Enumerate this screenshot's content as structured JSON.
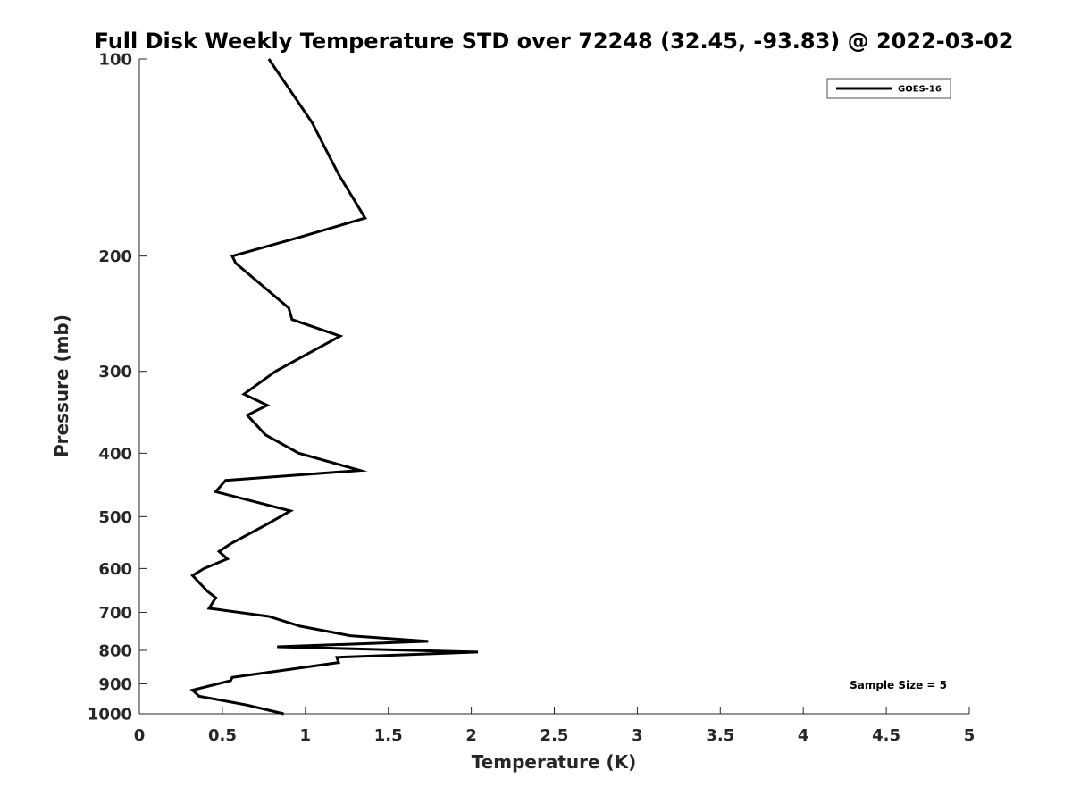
{
  "chart_data": {
    "type": "line",
    "title": "Full Disk Weekly Temperature STD over 72248 (32.45, -93.83) @ 2022-03-02",
    "xlabel": "Temperature (K)",
    "ylabel": "Pressure (mb)",
    "xlim": [
      0,
      5
    ],
    "ylim": [
      100,
      1000
    ],
    "y_scale": "log",
    "y_reversed": true,
    "x_ticks": [
      "0",
      "0.5",
      "1",
      "1.5",
      "2",
      "2.5",
      "3",
      "3.5",
      "4",
      "4.5",
      "5"
    ],
    "y_ticks": [
      "100",
      "200",
      "300",
      "400",
      "500",
      "600",
      "700",
      "800",
      "900",
      "1000"
    ],
    "grid": false,
    "legend_position": "top-right",
    "annotation": "Sample Size = 5",
    "series": [
      {
        "name": "GOES-16",
        "color": "#000000",
        "x": [
          0.78,
          1.04,
          1.2,
          1.36,
          0.97,
          0.56,
          0.58,
          0.9,
          0.92,
          1.21,
          0.82,
          0.63,
          0.77,
          0.65,
          0.76,
          0.96,
          1.33,
          0.52,
          0.46,
          0.91,
          0.76,
          0.55,
          0.48,
          0.53,
          0.39,
          0.32,
          0.41,
          0.46,
          0.42,
          0.78,
          0.97,
          1.27,
          1.74,
          0.83,
          2.04,
          1.19,
          1.2,
          0.84,
          0.56,
          0.55,
          0.32,
          0.36,
          0.65,
          0.87
        ],
        "y": [
          100,
          125,
          150,
          175,
          187,
          200,
          205,
          240,
          250,
          265,
          300,
          325,
          338,
          350,
          375,
          400,
          425,
          440,
          458,
          490,
          515,
          550,
          565,
          580,
          600,
          615,
          650,
          665,
          690,
          710,
          735,
          760,
          775,
          790,
          805,
          820,
          835,
          860,
          880,
          890,
          920,
          940,
          970,
          1000
        ]
      }
    ]
  }
}
